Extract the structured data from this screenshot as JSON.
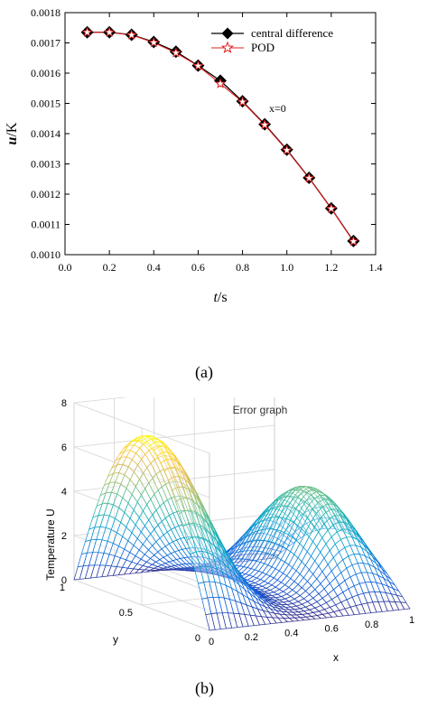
{
  "chart_data": [
    {
      "type": "line",
      "panel_label": "(a)",
      "xlabel_italic": "t",
      "xlabel_unit": "/s",
      "ylabel_italic": "u",
      "ylabel_unit": "/K",
      "xlim": [
        0.0,
        1.4
      ],
      "ylim": [
        0.001,
        0.0018
      ],
      "xticks": [
        "0.0",
        "0.2",
        "0.4",
        "0.6",
        "0.8",
        "1.0",
        "1.2",
        "1.4"
      ],
      "yticks": [
        "0.0010",
        "0.0011",
        "0.0012",
        "0.0013",
        "0.0014",
        "0.0015",
        "0.0016",
        "0.0017",
        "0.0018"
      ],
      "annotation": "x=0",
      "legend_position": "top-right",
      "x": [
        0.1,
        0.2,
        0.3,
        0.4,
        0.5,
        0.6,
        0.7,
        0.8,
        0.9,
        1.0,
        1.1,
        1.2,
        1.3
      ],
      "series": [
        {
          "name": "central difference",
          "marker": "diamond",
          "color": "#000000",
          "values": [
            0.001735,
            0.001735,
            0.001727,
            0.001703,
            0.001671,
            0.001625,
            0.001575,
            0.001507,
            0.001431,
            0.001347,
            0.001254,
            0.001153,
            0.001045
          ]
        },
        {
          "name": "POD",
          "marker": "star",
          "color": "#e02020",
          "values": [
            0.001735,
            0.001735,
            0.001726,
            0.001701,
            0.001667,
            0.001624,
            0.001565,
            0.001505,
            0.001429,
            0.001345,
            0.001253,
            0.001152,
            0.001044
          ]
        }
      ]
    },
    {
      "type": "surface",
      "panel_label": "(b)",
      "title": "Error graph",
      "zlabel": "Temperature U",
      "xlabel": "x",
      "ylabel": "y",
      "zscale": "×10⁻³",
      "zticks": [
        "0",
        "2",
        "4",
        "6",
        "8"
      ],
      "xticks": [
        "0",
        "0.2",
        "0.4",
        "0.6",
        "0.8",
        "1"
      ],
      "yticks": [
        "0",
        "0.5",
        "1"
      ],
      "zlim": [
        0,
        8
      ],
      "colormap": "parula"
    }
  ]
}
